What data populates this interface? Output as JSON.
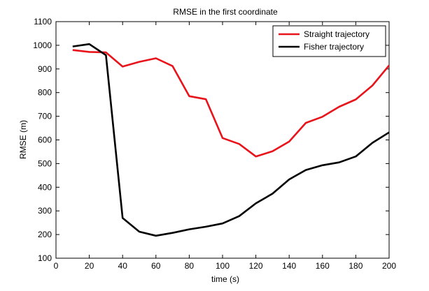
{
  "chart_data": {
    "type": "line",
    "title": "RMSE in the first coordinate",
    "xlabel": "time (s)",
    "ylabel": "RMSE (m)",
    "xlim": [
      0,
      200
    ],
    "ylim": [
      100,
      1100
    ],
    "xticks": [
      0,
      20,
      40,
      60,
      80,
      100,
      120,
      140,
      160,
      180,
      200
    ],
    "yticks": [
      100,
      200,
      300,
      400,
      500,
      600,
      700,
      800,
      900,
      1000,
      1100
    ],
    "grid": false,
    "legend_position": "top-right",
    "x": [
      10,
      20,
      30,
      40,
      50,
      60,
      70,
      80,
      90,
      100,
      110,
      120,
      130,
      140,
      150,
      160,
      170,
      180,
      190,
      200
    ],
    "series": [
      {
        "name": "Straight trajectory",
        "color": "#e8141b",
        "values": [
          980,
          972,
          970,
          910,
          930,
          945,
          912,
          785,
          772,
          608,
          583,
          530,
          552,
          593,
          672,
          698,
          740,
          771,
          830,
          915
        ]
      },
      {
        "name": "Fisher trajectory",
        "color": "#000000",
        "values": [
          995,
          1005,
          958,
          270,
          212,
          195,
          207,
          222,
          233,
          247,
          278,
          332,
          373,
          433,
          473,
          493,
          505,
          530,
          588,
          632
        ]
      }
    ]
  }
}
